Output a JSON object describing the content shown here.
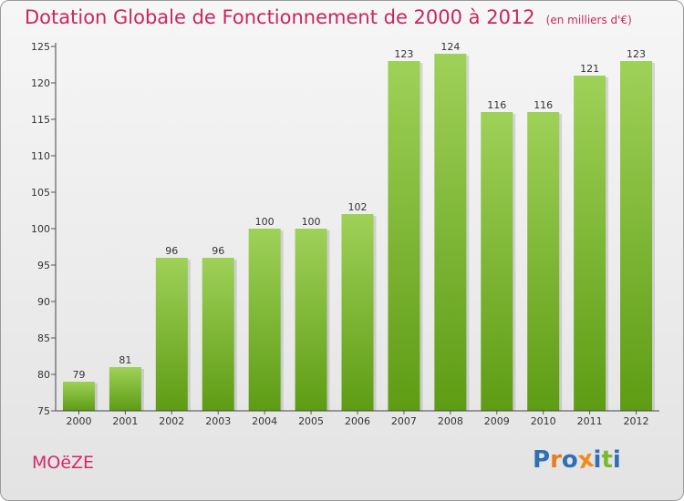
{
  "header": {
    "title": "Dotation Globale de Fonctionnement de 2000 à 2012",
    "subtitle": "(en milliers d'€)"
  },
  "footer": {
    "commune": "MOëZE",
    "logo_text": "Proxiti"
  },
  "colors": {
    "title": "#c8285a",
    "bar_light": "#9ed158",
    "bar_dark": "#5e9c14",
    "background_top": "#f6f6f6",
    "background_bottom": "#e3e3e3"
  },
  "chart_data": {
    "type": "bar",
    "categories": [
      "2000",
      "2001",
      "2002",
      "2003",
      "2004",
      "2005",
      "2006",
      "2007",
      "2008",
      "2009",
      "2010",
      "2011",
      "2012"
    ],
    "values": [
      79,
      81,
      96,
      96,
      100,
      100,
      102,
      123,
      124,
      116,
      116,
      121,
      123
    ],
    "ylim": [
      75,
      125
    ],
    "yticks": [
      75,
      80,
      85,
      90,
      95,
      100,
      105,
      110,
      115,
      120,
      125
    ],
    "grid": false,
    "data_labels": true
  }
}
